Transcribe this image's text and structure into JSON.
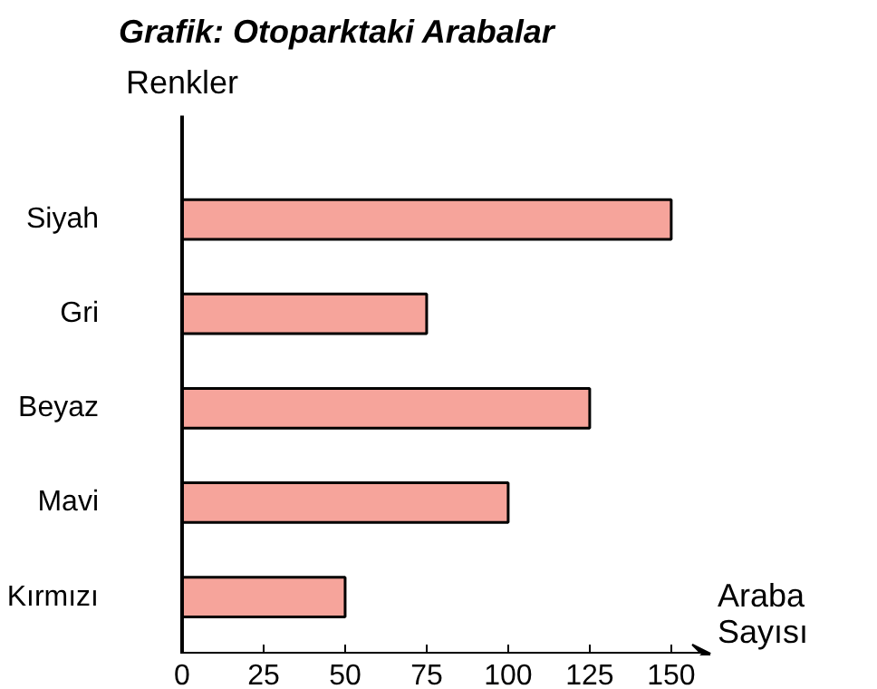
{
  "chart_data": {
    "type": "bar",
    "orientation": "horizontal",
    "title": "Grafik: Otoparktaki Arabalar",
    "xlabel": "Araba Sayısı",
    "ylabel": "Renkler",
    "categories": [
      "Siyah",
      "Gri",
      "Beyaz",
      "Mavi",
      "Kırmızı"
    ],
    "values": [
      150,
      75,
      125,
      100,
      50
    ],
    "color": "#f6a49b",
    "xlim": [
      0,
      162
    ],
    "xticks": [
      0,
      25,
      50,
      75,
      100,
      125,
      150
    ],
    "grid": false
  }
}
